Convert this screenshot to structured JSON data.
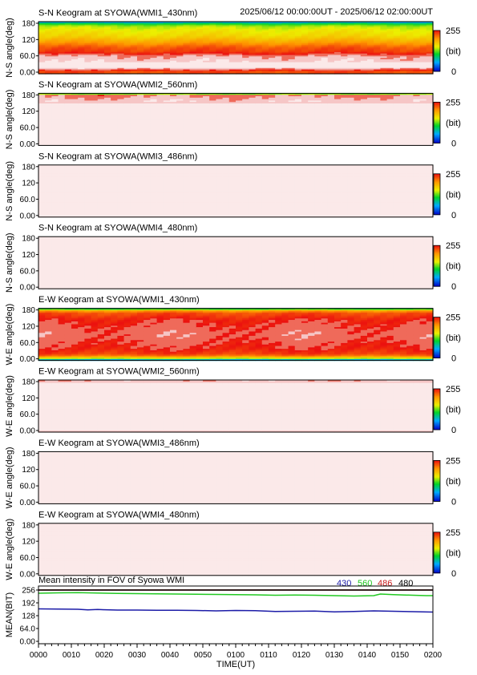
{
  "header": {
    "time_range": "2025/06/12 00:00:00UT - 2025/06/12 02:00:00UT"
  },
  "colorbar": {
    "max_label": "255",
    "unit_label": "(bit)",
    "min_label": "0"
  },
  "colors": {
    "series_430": "#1c1ca8",
    "series_560": "#22c822",
    "series_486": "#c81c1c",
    "series_480": "#000000"
  },
  "chart_data": [
    {
      "type": "heatmap",
      "title": "S-N Keogram at SYOWA(WMI1_430nm)",
      "ylabel": "N-S angle(deg)",
      "yticks": [
        "180",
        "120",
        "60.0",
        "0.00"
      ],
      "ylim": [
        0,
        180
      ],
      "xlim": [
        "0000",
        "0200"
      ],
      "colormap": "rainbow (0 blue to 255 red)",
      "profile": [
        [
          0,
          210
        ],
        [
          6,
          205
        ],
        [
          12,
          225
        ],
        [
          20,
          252
        ],
        [
          32,
          255
        ],
        [
          45,
          248
        ],
        [
          60,
          242
        ],
        [
          75,
          215
        ],
        [
          90,
          205
        ],
        [
          110,
          175
        ],
        [
          130,
          150
        ],
        [
          150,
          140
        ],
        [
          165,
          125
        ],
        [
          173,
          90
        ],
        [
          180,
          40
        ]
      ]
    },
    {
      "type": "heatmap",
      "title": "S-N Keogram at SYOWA(WMI2_560nm)",
      "ylabel": "N-S angle(deg)",
      "yticks": [
        "180",
        "120",
        "60.0",
        "0.00"
      ],
      "ylim": [
        0,
        180
      ],
      "xlim": [
        "0000",
        "0200"
      ],
      "colormap": "rainbow (0 blue to 255 red)",
      "profile": [
        [
          0,
          255
        ],
        [
          100,
          255
        ],
        [
          140,
          255
        ],
        [
          160,
          245
        ],
        [
          175,
          235
        ],
        [
          180,
          0
        ]
      ]
    },
    {
      "type": "heatmap",
      "title": "S-N Keogram at SYOWA(WMI3_486nm)",
      "ylabel": "N-S angle(deg)",
      "yticks": [
        "180",
        "120",
        "60.0",
        "0.00"
      ],
      "ylim": [
        0,
        180
      ],
      "xlim": [
        "0000",
        "0200"
      ],
      "colormap": "rainbow (0 blue to 255 red)",
      "profile": [
        [
          0,
          255
        ],
        [
          180,
          255
        ]
      ]
    },
    {
      "type": "heatmap",
      "title": "S-N Keogram at SYOWA(WMI4_480nm)",
      "ylabel": "N-S angle(deg)",
      "yticks": [
        "180",
        "120",
        "60.0",
        "0.00"
      ],
      "ylim": [
        0,
        180
      ],
      "xlim": [
        "0000",
        "0200"
      ],
      "colormap": "rainbow (0 blue to 255 red)",
      "profile": [
        [
          0,
          255
        ],
        [
          180,
          255
        ]
      ]
    },
    {
      "type": "heatmap",
      "title": "E-W Keogram at SYOWA(WMI1_430nm)",
      "ylabel": "W-E angle(deg)",
      "yticks": [
        "180",
        "120",
        "60.0",
        "0.00"
      ],
      "ylim": [
        0,
        180
      ],
      "xlim": [
        "0000",
        "0200"
      ],
      "colormap": "rainbow (0 blue to 255 red)",
      "profile": [
        [
          0,
          0
        ],
        [
          4,
          100
        ],
        [
          10,
          160
        ],
        [
          20,
          210
        ],
        [
          40,
          225
        ],
        [
          90,
          235
        ],
        [
          140,
          225
        ],
        [
          165,
          205
        ],
        [
          174,
          160
        ],
        [
          178,
          90
        ],
        [
          180,
          20
        ]
      ]
    },
    {
      "type": "heatmap",
      "title": "E-W Keogram at SYOWA(WMI2_560nm)",
      "ylabel": "W-E angle(deg)",
      "yticks": [
        "180",
        "120",
        "60.0",
        "0.00"
      ],
      "ylim": [
        0,
        180
      ],
      "xlim": [
        "0000",
        "0200"
      ],
      "colormap": "rainbow (0 blue to 255 red)",
      "profile": [
        [
          0,
          250
        ],
        [
          15,
          255
        ],
        [
          160,
          255
        ],
        [
          175,
          250
        ],
        [
          180,
          240
        ]
      ]
    },
    {
      "type": "heatmap",
      "title": "E-W Keogram at SYOWA(WMI3_486nm)",
      "ylabel": "W-E angle(deg)",
      "yticks": [
        "180",
        "120",
        "60.0",
        "0.00"
      ],
      "ylim": [
        0,
        180
      ],
      "xlim": [
        "0000",
        "0200"
      ],
      "colormap": "rainbow (0 blue to 255 red)",
      "profile": [
        [
          0,
          255
        ],
        [
          180,
          255
        ]
      ]
    },
    {
      "type": "heatmap",
      "title": "E-W Keogram at SYOWA(WMI4_480nm)",
      "ylabel": "W-E angle(deg)",
      "yticks": [
        "180",
        "120",
        "60.0",
        "0.00"
      ],
      "ylim": [
        0,
        180
      ],
      "xlim": [
        "0000",
        "0200"
      ],
      "colormap": "rainbow (0 blue to 255 red)",
      "profile": [
        [
          0,
          255
        ],
        [
          180,
          255
        ]
      ]
    },
    {
      "type": "line",
      "title": "Mean intensity in FOV of Syowa WMI",
      "xlabel": "TIME(UT)",
      "ylabel": "MEAN(BIT)",
      "ylim": [
        0,
        256
      ],
      "yticks": [
        "256",
        "192",
        "128",
        "64.0",
        "0.00"
      ],
      "x_ticks": [
        "0000",
        "0010",
        "0020",
        "0030",
        "0040",
        "0050",
        "0100",
        "0110",
        "0120",
        "0130",
        "0140",
        "0150",
        "0200"
      ],
      "legend": [
        "430",
        "560",
        "486",
        "480"
      ],
      "series": [
        {
          "name": "430",
          "color": "#1c1ca8",
          "x_minutes": [
            0,
            6,
            12,
            15,
            18,
            24,
            30,
            36,
            42,
            48,
            54,
            60,
            66,
            72,
            78,
            84,
            90,
            96,
            102,
            108,
            114,
            120
          ],
          "values": [
            162,
            161,
            160,
            157,
            159,
            156,
            156,
            155,
            155,
            154,
            152,
            154,
            153,
            149,
            150,
            151,
            147,
            149,
            152,
            150,
            148,
            146
          ]
        },
        {
          "name": "560",
          "color": "#22c822",
          "x_minutes": [
            0,
            6,
            12,
            18,
            24,
            30,
            36,
            42,
            48,
            54,
            60,
            66,
            72,
            78,
            84,
            90,
            96,
            102,
            104,
            108,
            114,
            118,
            120
          ],
          "values": [
            240,
            242,
            243,
            241,
            239,
            238,
            237,
            236,
            235,
            234,
            233,
            232,
            230,
            231,
            230,
            228,
            226,
            228,
            236,
            233,
            230,
            228,
            228
          ]
        },
        {
          "name": "486",
          "color": "#c81c1c",
          "x_minutes": [
            0,
            120
          ],
          "values": [
            256,
            256
          ]
        },
        {
          "name": "480",
          "color": "#000000",
          "x_minutes": [
            0,
            120
          ],
          "values": [
            256,
            256
          ]
        }
      ]
    }
  ]
}
